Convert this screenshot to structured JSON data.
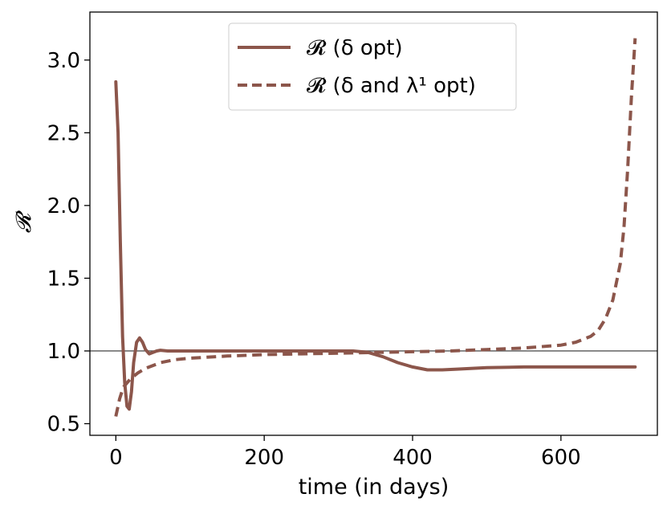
{
  "chart_data": {
    "type": "line",
    "title": "",
    "xlabel": "time (in days)",
    "ylabel": "𝓡",
    "xlim": [
      -35,
      730
    ],
    "ylim": [
      0.42,
      3.33
    ],
    "xticks": [
      0,
      200,
      400,
      600
    ],
    "xtick_labels": [
      "0",
      "200",
      "400",
      "600"
    ],
    "yticks": [
      0.5,
      1.0,
      1.5,
      2.0,
      2.5,
      3.0
    ],
    "ytick_labels": [
      "0.5",
      "1.0",
      "1.5",
      "2.0",
      "2.5",
      "3.0"
    ],
    "grid": false,
    "legend_placement": "top-center",
    "reference_line": {
      "y": 1.0,
      "color": "#555555"
    },
    "series": [
      {
        "name": "𝓡 (δ opt)",
        "color": "#8c564b",
        "style": "solid",
        "x": [
          0,
          3,
          6,
          9,
          12,
          15,
          18,
          21,
          24,
          28,
          32,
          36,
          40,
          45,
          50,
          55,
          60,
          70,
          80,
          100,
          150,
          200,
          250,
          300,
          320,
          340,
          360,
          380,
          400,
          420,
          440,
          460,
          500,
          550,
          600,
          650,
          700
        ],
        "y": [
          2.85,
          2.5,
          1.75,
          1.1,
          0.78,
          0.62,
          0.6,
          0.72,
          0.92,
          1.06,
          1.09,
          1.06,
          1.01,
          0.98,
          0.99,
          1.0,
          1.005,
          1.0,
          1.0,
          1.0,
          1.0,
          1.0,
          1.0,
          1.0,
          1.0,
          0.99,
          0.96,
          0.92,
          0.89,
          0.87,
          0.87,
          0.875,
          0.885,
          0.89,
          0.89,
          0.89,
          0.89
        ]
      },
      {
        "name": "𝓡 (δ and λ¹ opt)",
        "color": "#8c564b",
        "style": "dashed",
        "x": [
          0,
          5,
          10,
          20,
          30,
          40,
          50,
          60,
          80,
          100,
          150,
          200,
          250,
          300,
          350,
          400,
          450,
          500,
          550,
          600,
          620,
          640,
          650,
          660,
          670,
          680,
          685,
          690,
          695,
          700
        ],
        "y": [
          0.55,
          0.67,
          0.75,
          0.81,
          0.85,
          0.88,
          0.9,
          0.92,
          0.94,
          0.95,
          0.965,
          0.975,
          0.98,
          0.985,
          0.99,
          0.995,
          1.0,
          1.01,
          1.02,
          1.04,
          1.06,
          1.1,
          1.14,
          1.22,
          1.35,
          1.6,
          1.85,
          2.25,
          2.75,
          3.15
        ]
      }
    ]
  }
}
